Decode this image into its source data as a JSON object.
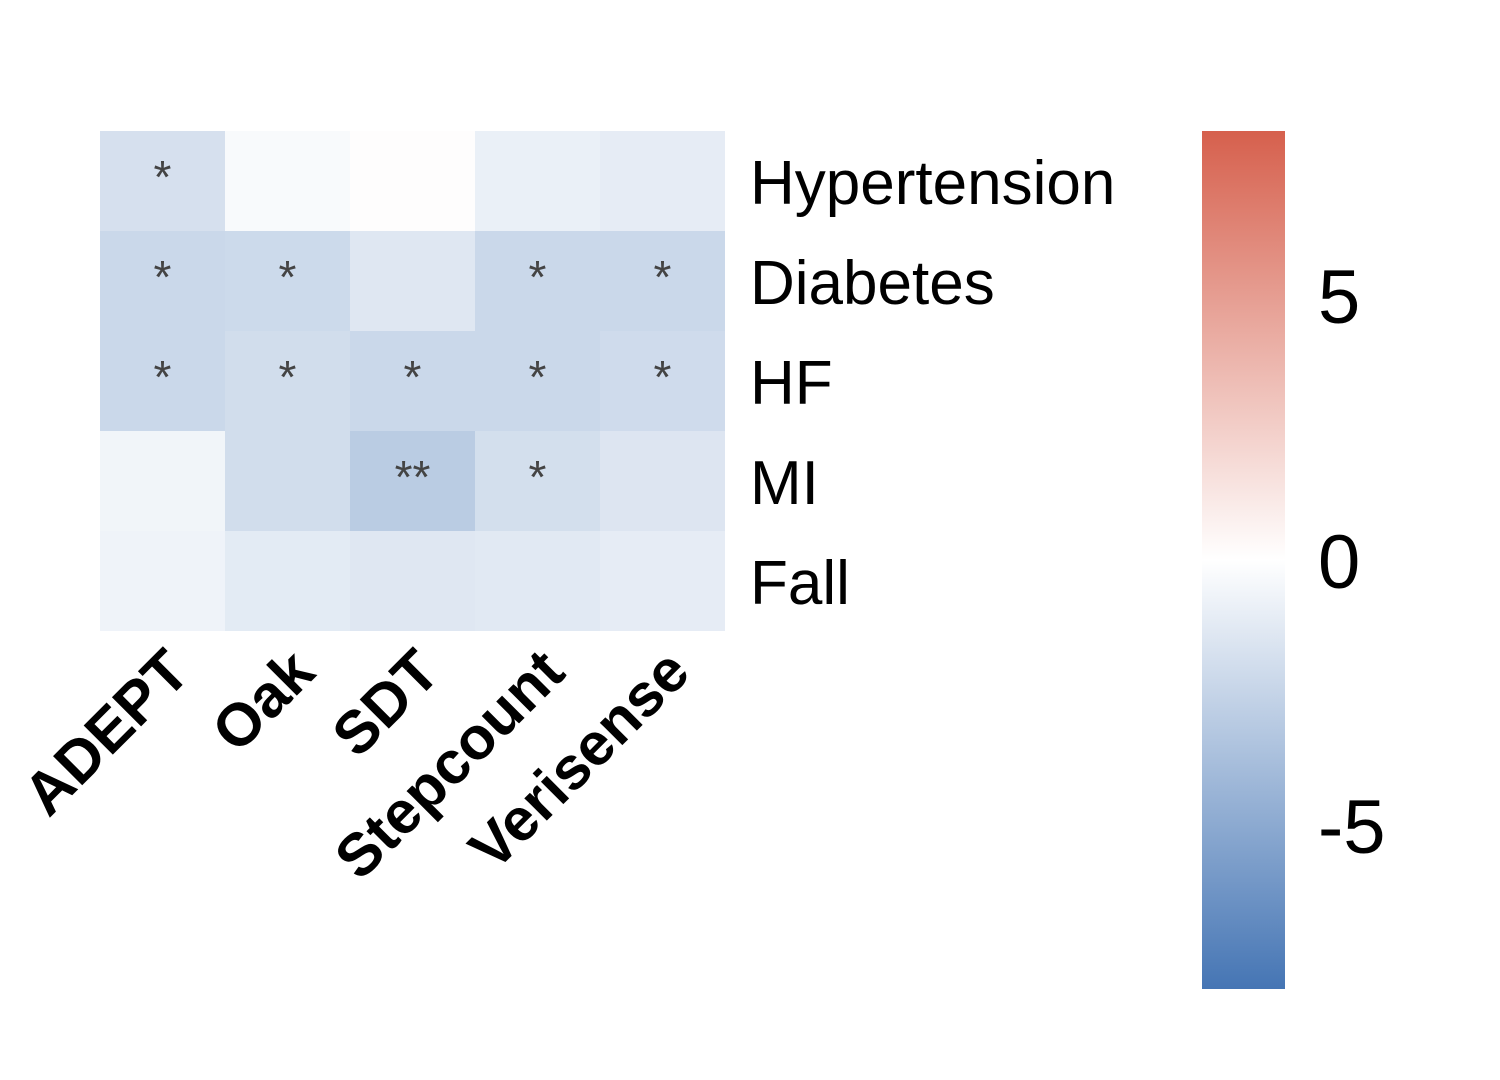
{
  "chart_data": {
    "type": "heatmap",
    "columns": [
      "ADEPT",
      "Oak",
      "SDT",
      "Stepcount",
      "Verisense"
    ],
    "rows": [
      "Hypertension",
      "Diabetes",
      "HF",
      "MI",
      "Fall"
    ],
    "values": [
      [
        -1.8,
        -0.3,
        0.1,
        -0.9,
        -1.1
      ],
      [
        -2.3,
        -2.2,
        -1.4,
        -2.3,
        -2.3
      ],
      [
        -2.3,
        -2.0,
        -2.3,
        -2.3,
        -2.1
      ],
      [
        -0.6,
        -2.0,
        -3.0,
        -1.9,
        -1.5
      ],
      [
        -0.7,
        -1.2,
        -1.4,
        -1.3,
        -1.1
      ]
    ],
    "significance": [
      [
        "*",
        "",
        "",
        "",
        ""
      ],
      [
        "*",
        "*",
        "",
        "*",
        "*"
      ],
      [
        "*",
        "*",
        "*",
        "*",
        "*"
      ],
      [
        "",
        "",
        "**",
        "*",
        ""
      ],
      [
        "",
        "",
        "",
        "",
        ""
      ]
    ],
    "color_scale": {
      "min": -8.1,
      "max": 8.1,
      "low_color": "#4575b4",
      "mid_color": "#ffffff",
      "high_color": "#d6604d",
      "ticks": [
        5,
        0,
        -5
      ],
      "tick_labels": [
        "5",
        "0",
        "-5"
      ]
    },
    "grid": false,
    "legend": "right"
  }
}
